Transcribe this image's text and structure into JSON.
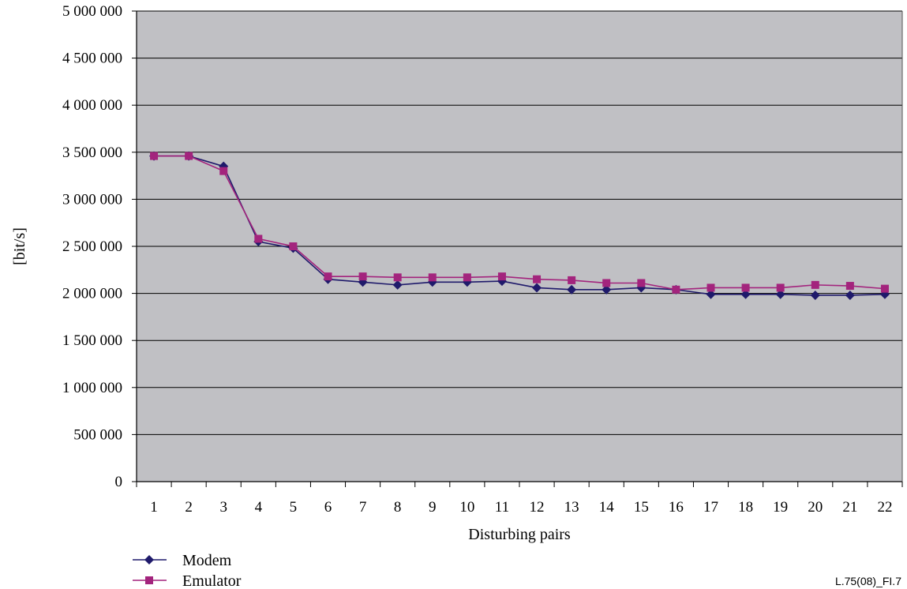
{
  "chart_data": {
    "type": "line",
    "xlabel": "Disturbing pairs",
    "ylabel": "[bit/s]",
    "categories": [
      "1",
      "2",
      "3",
      "4",
      "5",
      "6",
      "7",
      "8",
      "9",
      "10",
      "11",
      "12",
      "13",
      "14",
      "15",
      "16",
      "17",
      "18",
      "19",
      "20",
      "21",
      "22"
    ],
    "ylim": [
      0,
      5000000
    ],
    "yticks": [
      0,
      500000,
      1000000,
      1500000,
      2000000,
      2500000,
      3000000,
      3500000,
      4000000,
      4500000,
      5000000
    ],
    "ytick_labels": [
      "0",
      "500 000",
      "1 000 000",
      "1 500 000",
      "2 000 000",
      "2 500 000",
      "3 000 000",
      "3 500 000",
      "4 000 000",
      "4 500 000",
      "5 000 000"
    ],
    "grid": "horizontal",
    "legend_position": "bottom-left",
    "series": [
      {
        "name": "Modem",
        "color": "#1f1a6b",
        "marker": "diamond",
        "values": [
          3460000,
          3460000,
          3350000,
          2550000,
          2480000,
          2150000,
          2120000,
          2090000,
          2120000,
          2120000,
          2130000,
          2060000,
          2040000,
          2040000,
          2060000,
          2040000,
          1990000,
          1990000,
          1990000,
          1980000,
          1980000,
          1990000
        ]
      },
      {
        "name": "Emulator",
        "color": "#a3247d",
        "marker": "square",
        "values": [
          3460000,
          3460000,
          3300000,
          2580000,
          2500000,
          2180000,
          2180000,
          2170000,
          2170000,
          2170000,
          2180000,
          2150000,
          2140000,
          2110000,
          2110000,
          2040000,
          2060000,
          2060000,
          2060000,
          2090000,
          2080000,
          2050000
        ]
      }
    ],
    "background_color": "#c0c0c4",
    "figure_id": "L.75(08)_FI.7"
  }
}
